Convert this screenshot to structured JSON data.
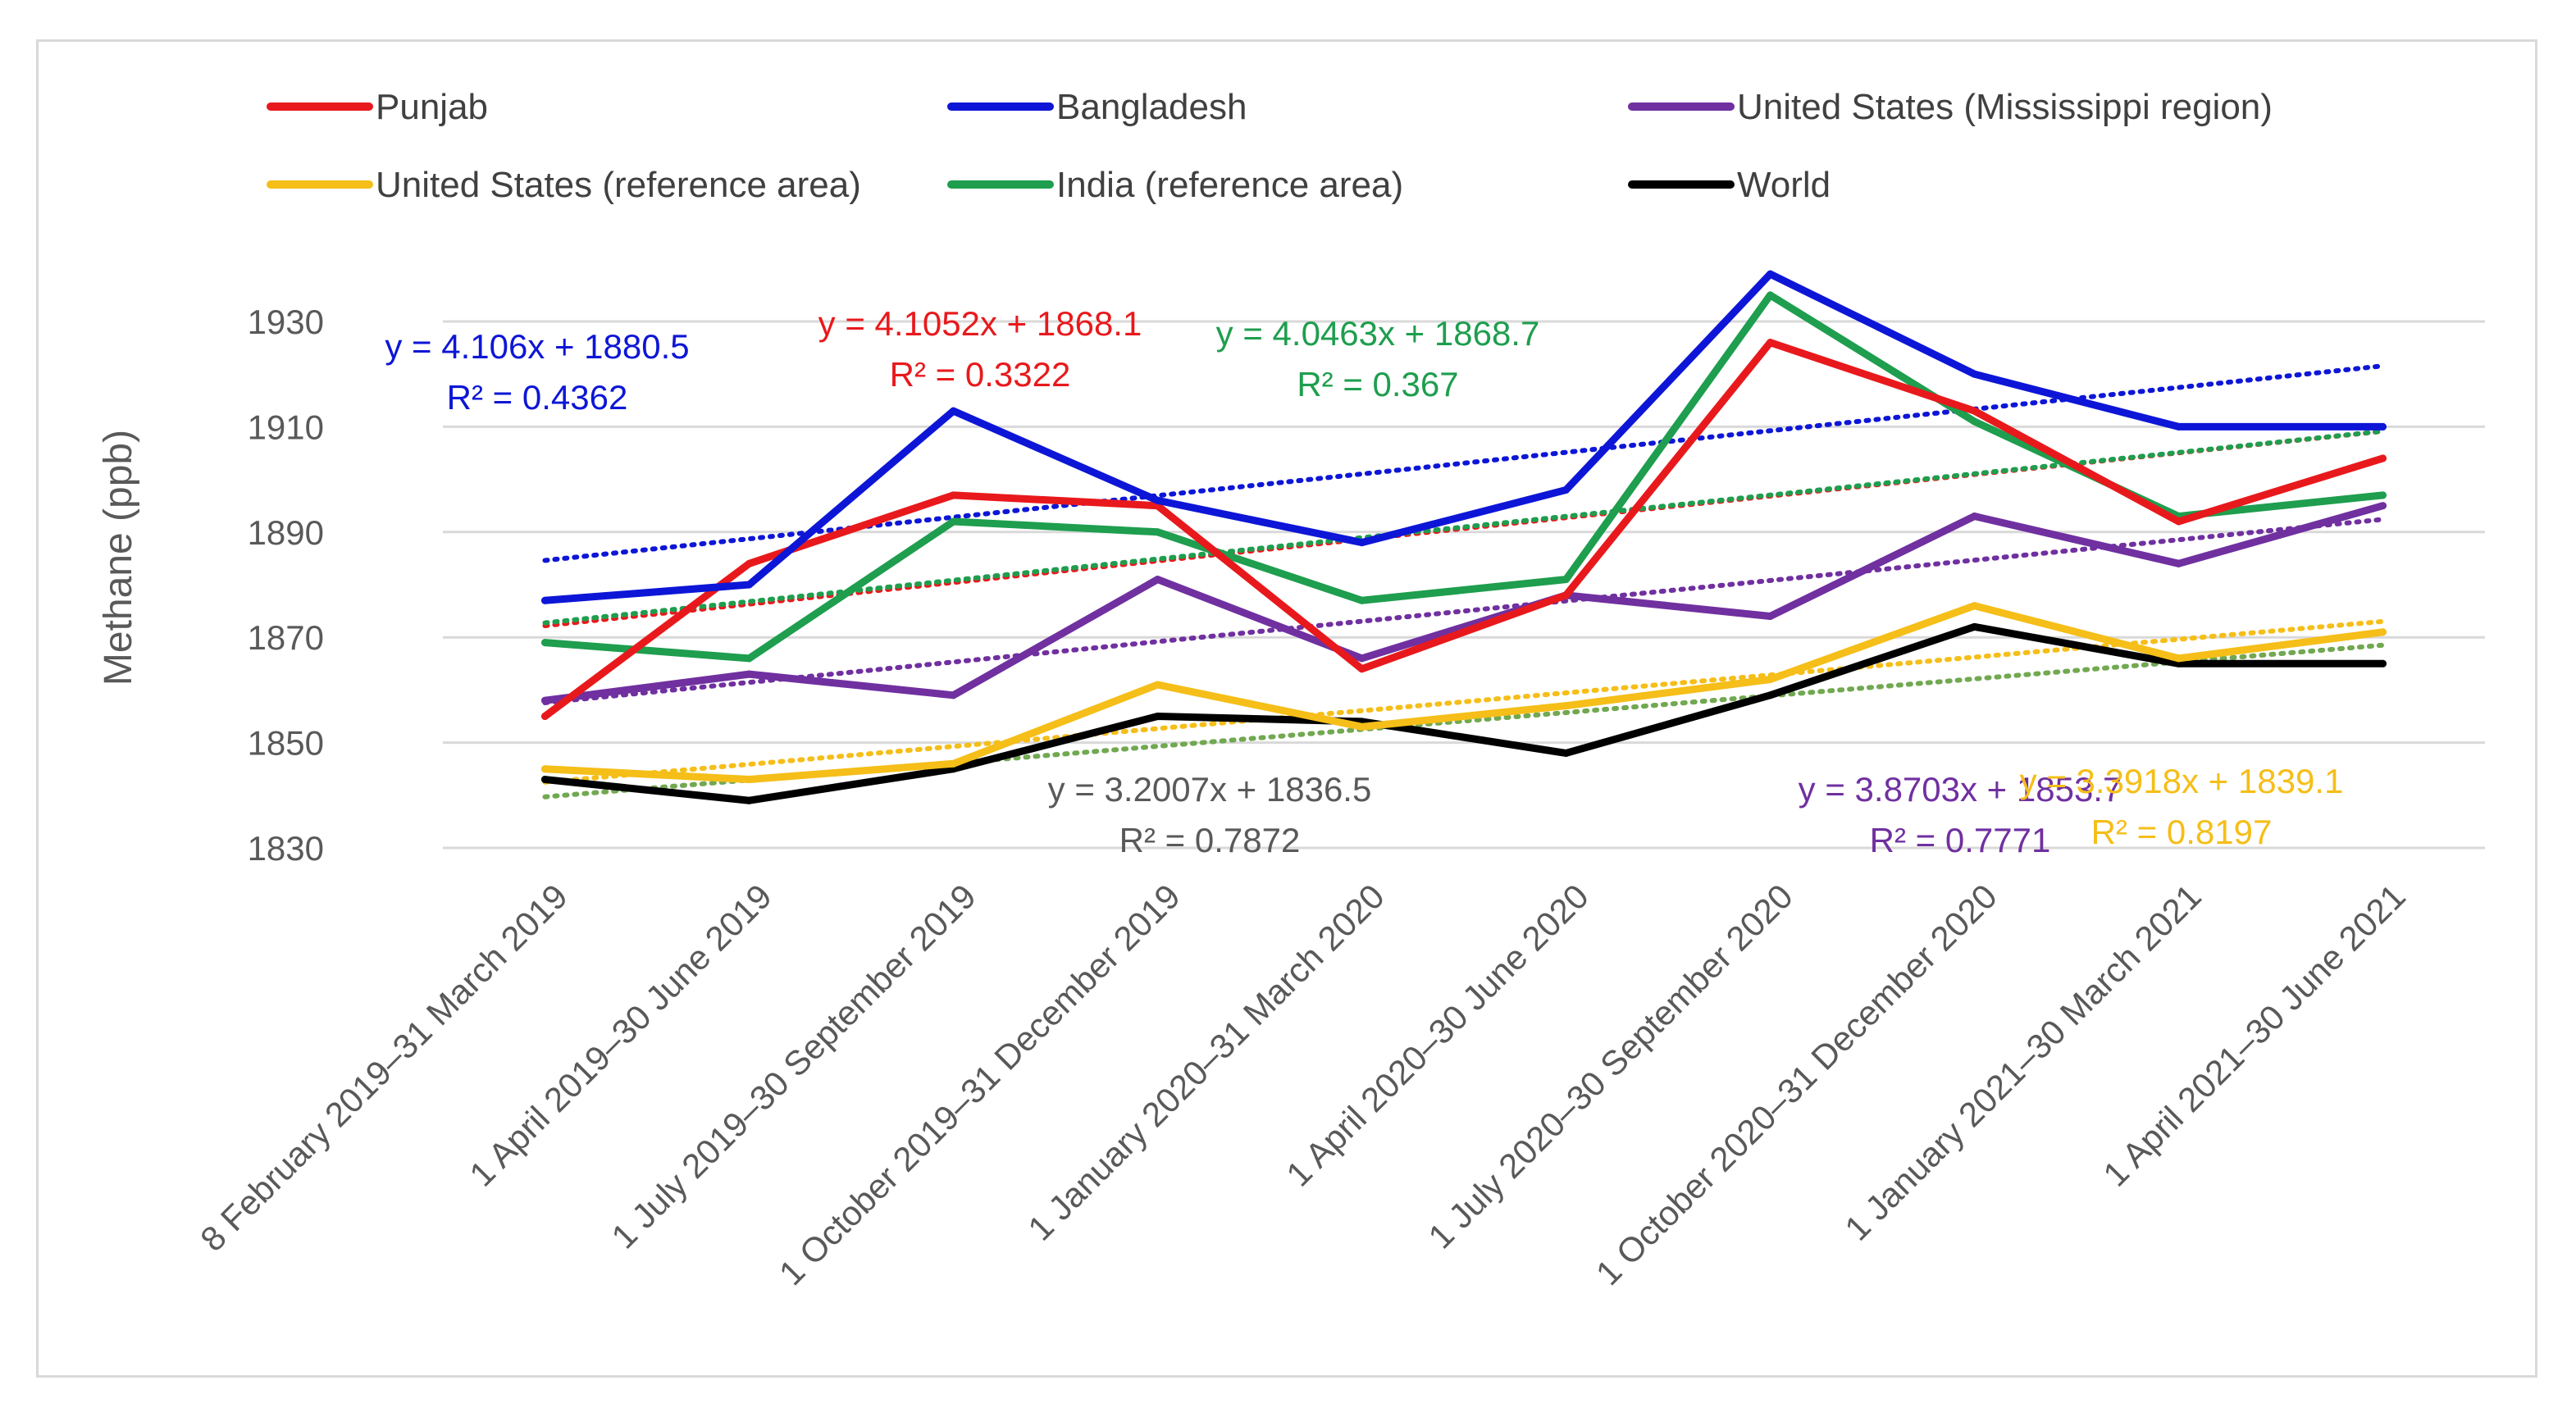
{
  "chart_data": {
    "type": "line",
    "title": "",
    "xlabel": "",
    "ylabel": "Methane (ppb)",
    "ylim": [
      1830,
      1930
    ],
    "yticks": [
      1830,
      1850,
      1870,
      1890,
      1910,
      1930
    ],
    "grid": true,
    "legend_position": "top",
    "categories": [
      "8 February 2019–31 March 2019",
      "1 April 2019–30 June 2019",
      "1 July 2019–30 September 2019",
      "1 October 2019–31 December 2019",
      "1 January 2020–31 March 2020",
      "1 April 2020–30 June 2020",
      "1 July 2020–30 September 2020",
      "1 October 2020–31 December 2020",
      "1 January 2021–30 March 2021",
      "1 April 2021–30 June 2021"
    ],
    "series": [
      {
        "name": "Punjab",
        "color": "#e8191c",
        "values": [
          1855,
          1884,
          1897,
          1895,
          1864,
          1878,
          1926,
          1913,
          1892,
          1904
        ],
        "trendline": {
          "slope": 4.1052,
          "intercept": 1868.1,
          "color": "#e8191c"
        }
      },
      {
        "name": "Bangladesh",
        "color": "#0d16d6",
        "values": [
          1877,
          1880,
          1913,
          1896,
          1888,
          1898,
          1939,
          1920,
          1910,
          1910
        ],
        "trendline": {
          "slope": 4.106,
          "intercept": 1880.5,
          "color": "#0d16d6"
        }
      },
      {
        "name": "United States (Mississippi region)",
        "color": "#7030a0",
        "values": [
          1858,
          1863,
          1859,
          1881,
          1866,
          1878,
          1874,
          1893,
          1884,
          1895
        ],
        "trendline": {
          "slope": 3.8703,
          "intercept": 1853.7,
          "color": "#7030a0"
        }
      },
      {
        "name": "United States (reference area)",
        "color": "#f5be18",
        "values": [
          1845,
          1843,
          1846,
          1861,
          1853,
          1857,
          1862,
          1876,
          1866,
          1871
        ],
        "trendline": {
          "slope": 3.3918,
          "intercept": 1839.1,
          "color": "#f5be18"
        }
      },
      {
        "name": "India (reference area)",
        "color": "#1e9e4e",
        "values": [
          1869,
          1866,
          1892,
          1890,
          1877,
          1881,
          1935,
          1911,
          1893,
          1897
        ],
        "trendline": {
          "slope": 4.0463,
          "intercept": 1868.7,
          "color": "#1e9e4e"
        }
      },
      {
        "name": "World",
        "color": "#000000",
        "values": [
          1843,
          1839,
          1845,
          1855,
          1854,
          1848,
          1859,
          1872,
          1865,
          1865
        ],
        "trendline": {
          "slope": 3.2007,
          "intercept": 1836.5,
          "color": "#71a850"
        }
      }
    ],
    "annotations": [
      {
        "line1": "y = 4.106x + 1880.5",
        "line2": "R² = 0.4362",
        "color": "#0d16d6"
      },
      {
        "line1": "y = 4.1052x + 1868.1",
        "line2": "R² = 0.3322",
        "color": "#e8191c"
      },
      {
        "line1": "y = 4.0463x + 1868.7",
        "line2": "R² = 0.367",
        "color": "#1e9e4e"
      },
      {
        "line1": "y = 3.2007x + 1836.5",
        "line2": "R² = 0.7872",
        "color": "#595959"
      },
      {
        "line1": "y = 3.8703x + 1853.7",
        "line2": "R² = 0.7771",
        "color": "#7030a0"
      },
      {
        "line1": "y = 3.3918x + 1839.1",
        "line2": "R² = 0.8197",
        "color": "#f5be18"
      }
    ]
  }
}
